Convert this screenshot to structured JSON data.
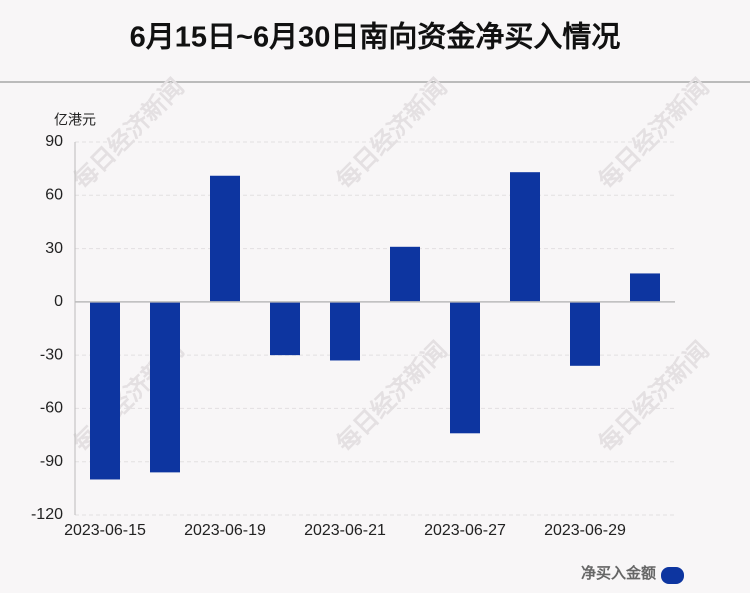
{
  "chart_data": {
    "type": "bar",
    "title": "6月15日~6月30日南向资金净买入情况",
    "y_label": "亿港元",
    "categories": [
      "2023-06-15",
      null,
      "2023-06-19",
      null,
      "2023-06-21",
      null,
      "2023-06-27",
      null,
      "2023-06-29",
      null
    ],
    "series": [
      {
        "name": "净买入金额",
        "color": "#0d35a0",
        "values": [
          -100,
          -96,
          71,
          -30,
          -33,
          31,
          -74,
          73,
          -36,
          16
        ]
      }
    ],
    "ylim": [
      -120,
      90
    ],
    "yticks": [
      -120,
      -90,
      -60,
      -30,
      0,
      30,
      60,
      90
    ],
    "grid": true,
    "watermark": "每日经济新闻"
  }
}
